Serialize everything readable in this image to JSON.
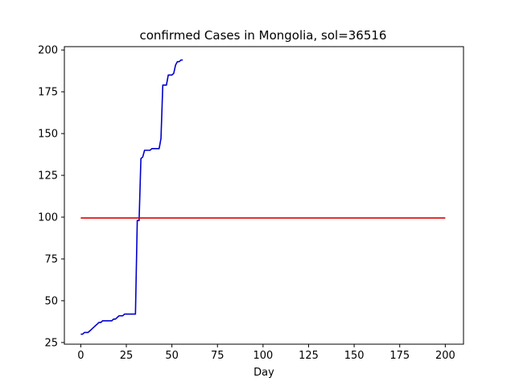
{
  "chart_data": {
    "type": "line",
    "title": "confirmed Cases in Mongolia, sol=36516",
    "xlabel": "Day",
    "ylabel": "",
    "xlim": [
      -9,
      210
    ],
    "ylim": [
      24,
      202
    ],
    "xticks": [
      0,
      25,
      50,
      75,
      100,
      125,
      150,
      175,
      200
    ],
    "yticks": [
      25,
      50,
      75,
      100,
      125,
      150,
      175,
      200
    ],
    "grid": false,
    "series": [
      {
        "color": "#0000cc",
        "x": [
          0,
          1,
          2,
          3,
          4,
          5,
          6,
          7,
          8,
          9,
          10,
          11,
          12,
          13,
          14,
          15,
          16,
          17,
          18,
          19,
          20,
          21,
          22,
          23,
          24,
          25,
          26,
          27,
          28,
          29,
          30,
          31,
          32,
          33,
          34,
          35,
          36,
          37,
          38,
          39,
          40,
          41,
          42,
          43,
          44,
          45,
          46,
          47,
          48,
          49,
          50,
          51,
          52,
          53,
          54,
          55,
          56
        ],
        "y": [
          30,
          30,
          31,
          31,
          31,
          32,
          33,
          34,
          35,
          36,
          37,
          37,
          38,
          38,
          38,
          38,
          38,
          38,
          39,
          39,
          40,
          41,
          41,
          41,
          42,
          42,
          42,
          42,
          42,
          42,
          42,
          98,
          98,
          135,
          136,
          140,
          140,
          140,
          140,
          141,
          141,
          141,
          141,
          141,
          147,
          179,
          179,
          179,
          185,
          185,
          185,
          186,
          191,
          193,
          193,
          194,
          194
        ]
      },
      {
        "color": "#dd0000",
        "x": [
          0,
          200
        ],
        "y": [
          99.5,
          99.5
        ]
      }
    ]
  }
}
